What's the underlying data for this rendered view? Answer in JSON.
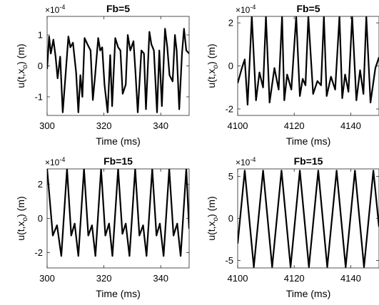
{
  "colors": {
    "line": "#000000",
    "axes": "#262626",
    "background": "#ffffff"
  },
  "chart_data": [
    {
      "type": "line",
      "title": "Fb=5",
      "xlabel": "Time (ms)",
      "ylabel": "u(t,x",
      "ylabel_sub": "o",
      "ylabel_tail": ") (m)",
      "exponent": "×10",
      "exponent_power": "-4",
      "xlim": [
        300,
        350
      ],
      "ylim": [
        -1.6,
        1.6
      ],
      "xticks": [
        300,
        320,
        340
      ],
      "yticks": [
        1,
        0,
        -1
      ],
      "ytick_labels": [
        "1",
        "0",
        "-1"
      ],
      "grid": false,
      "series": [
        {
          "x": [
            300,
            300.7,
            301.3,
            302.2,
            303.0,
            303.7,
            304.6,
            305.5,
            306.4,
            307.5,
            308.2,
            309.1,
            310.2,
            311.0,
            311.7,
            312.4,
            313.2,
            314.2,
            315.3,
            316.1,
            316.9,
            318.0,
            318.7,
            319.4,
            320.2,
            321.3,
            322.2,
            322.9,
            324.0,
            325.0,
            325.8,
            326.6,
            327.7,
            328.4,
            329.3,
            330.4,
            331.1,
            331.9,
            333.2,
            334.1,
            334.8,
            336.0,
            336.7,
            337.6,
            338.7,
            339.5,
            340.4,
            341.5,
            342.3,
            343.1,
            344.2,
            345.0,
            345.6,
            346.5,
            347.5,
            348.2,
            349.0,
            350
          ],
          "y": [
            -0.1,
            0.95,
            0.4,
            0.85,
            0.3,
            -0.4,
            0.3,
            -1.5,
            -0.4,
            0.95,
            0.6,
            0.75,
            -0.2,
            -1.5,
            -0.3,
            -1.0,
            0.9,
            0.7,
            0.5,
            -1.1,
            -0.3,
            0.9,
            0.5,
            0.6,
            -0.6,
            -1.5,
            0.35,
            -1.3,
            0.9,
            0.6,
            0.5,
            -0.9,
            -0.6,
            1.0,
            0.5,
            0.8,
            -0.2,
            -1.5,
            0.5,
            0.4,
            -1.4,
            1.1,
            0.7,
            0.5,
            -1.5,
            0.5,
            -1.3,
            1.2,
            0.6,
            -0.3,
            -0.5,
            1.0,
            0.5,
            -1.4,
            0.4,
            1.2,
            0.5,
            0.4
          ]
        }
      ]
    },
    {
      "type": "line",
      "title": "Fb=5",
      "xlabel": "Time (ms)",
      "ylabel": "u(t,x",
      "ylabel_sub": "o",
      "ylabel_tail": ") (m)",
      "exponent": "×10",
      "exponent_power": "-4",
      "xlim": [
        4100,
        4150
      ],
      "ylim": [
        -2.3,
        2.3
      ],
      "xticks": [
        4100,
        4120,
        4140
      ],
      "yticks": [
        2,
        0,
        -2
      ],
      "ytick_labels": [
        "2",
        "0",
        "-2"
      ],
      "grid": false,
      "series": [
        {
          "x": [
            4100,
            4101.5,
            4102.5,
            4103.5,
            4105,
            4106.5,
            4107.7,
            4109,
            4110,
            4111.3,
            4113,
            4114.5,
            4115.7,
            4116.5,
            4117.5,
            4119,
            4120.7,
            4122,
            4123,
            4124,
            4125,
            4126.7,
            4128.2,
            4129.5,
            4130.5,
            4131.5,
            4133,
            4134.5,
            4136,
            4137,
            4138,
            4139.2,
            4140.5,
            4142,
            4143.3,
            4144.5,
            4145.5,
            4147,
            4148.7,
            4150
          ],
          "y": [
            -0.8,
            -0.1,
            0.3,
            -1.8,
            2.3,
            -1.6,
            -0.3,
            -1.0,
            2.3,
            -1.7,
            -0.1,
            -1.1,
            2.3,
            -1.6,
            -0.4,
            -1.1,
            2.3,
            -1.4,
            -0.6,
            -0.9,
            2.3,
            -1.3,
            -0.7,
            -0.9,
            2.3,
            -1.4,
            -0.5,
            -1.1,
            2.3,
            -1.5,
            -0.4,
            -1.2,
            2.3,
            -1.6,
            -0.2,
            -1.3,
            2.3,
            -1.7,
            -0.1,
            0.4
          ]
        }
      ]
    },
    {
      "type": "line",
      "title": "Fb=15",
      "xlabel": "Time (ms)",
      "ylabel": "u(t,x",
      "ylabel_sub": "o",
      "ylabel_tail": ") (m)",
      "exponent": "×10",
      "exponent_power": "-4",
      "xlim": [
        300,
        350
      ],
      "ylim": [
        -2.9,
        2.9
      ],
      "xticks": [
        300,
        320,
        340
      ],
      "yticks": [
        2,
        0,
        -2
      ],
      "ytick_labels": [
        "2",
        "0",
        "-2"
      ],
      "grid": false,
      "series": [
        {
          "x": [
            300,
            302.0,
            303.5,
            305.0,
            307.0,
            308.5,
            309.7,
            311.0,
            313.0,
            314.5,
            315.8,
            317.0,
            319.0,
            320.5,
            321.8,
            323.0,
            325.0,
            326.5,
            327.7,
            329.0,
            331.0,
            332.5,
            333.8,
            335.0,
            337.0,
            338.5,
            339.7,
            341.0,
            343.0,
            344.5,
            345.8,
            347.0,
            349.0,
            350
          ],
          "y": [
            2.9,
            -1.0,
            -0.4,
            -2.2,
            2.9,
            -1.0,
            -0.3,
            -2.2,
            2.9,
            -1.0,
            -0.4,
            -2.2,
            2.9,
            -1.0,
            -0.3,
            -2.2,
            2.9,
            -0.9,
            -0.3,
            -2.2,
            2.9,
            -1.0,
            -0.4,
            -2.2,
            2.9,
            -1.0,
            -0.3,
            -2.2,
            2.9,
            -1.0,
            -0.3,
            -2.2,
            2.9,
            -0.6
          ]
        }
      ]
    },
    {
      "type": "line",
      "title": "Fb=15",
      "xlabel": "Time (ms)",
      "ylabel": "u(t,x",
      "ylabel_sub": "o",
      "ylabel_tail": ") (m)",
      "exponent": "×10",
      "exponent_power": "-4",
      "xlim": [
        4100,
        4150
      ],
      "ylim": [
        -5.9,
        5.9
      ],
      "xticks": [
        4100,
        4120,
        4140
      ],
      "yticks": [
        5,
        0,
        -5
      ],
      "ytick_labels": [
        "5",
        "0",
        "-5"
      ],
      "grid": false,
      "series": [
        {
          "x": [
            4100,
            4102.5,
            4105.7,
            4109.0,
            4112.2,
            4115.5,
            4118.7,
            4122.0,
            4125.2,
            4128.5,
            4131.7,
            4135.0,
            4138.2,
            4141.5,
            4144.7,
            4148.0,
            4150
          ],
          "y": [
            -3.0,
            5.7,
            -5.8,
            5.7,
            -5.8,
            5.7,
            -5.8,
            5.7,
            -5.8,
            5.7,
            -5.8,
            5.7,
            -5.8,
            5.7,
            -5.8,
            5.7,
            -1.0
          ]
        }
      ]
    }
  ]
}
